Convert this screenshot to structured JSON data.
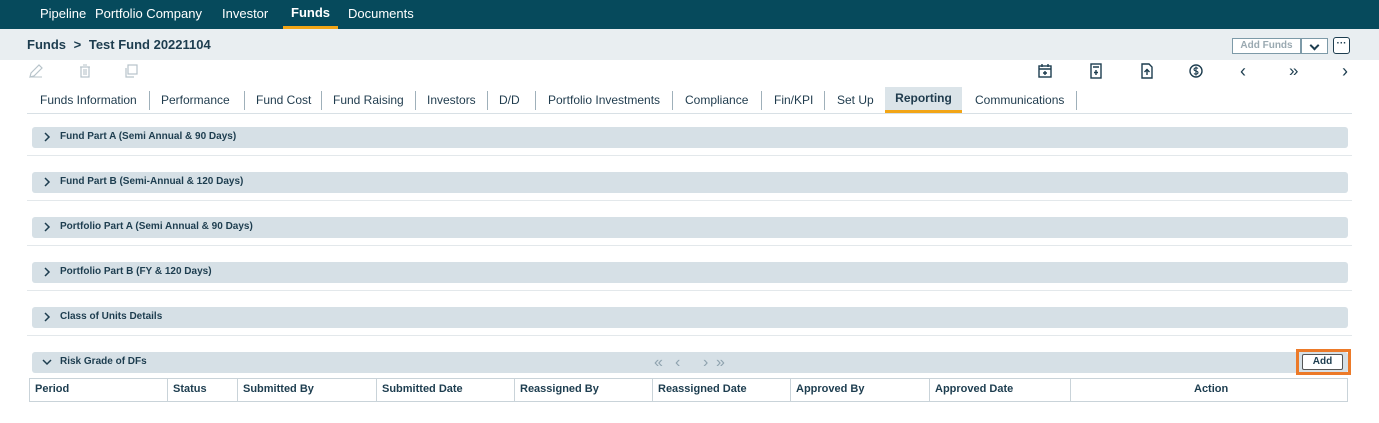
{
  "topnav": {
    "items": [
      "Pipeline",
      "Portfolio Company",
      "Investor",
      "Funds",
      "Documents"
    ],
    "active": "Funds"
  },
  "breadcrumb": {
    "root": "Funds",
    "separator": ">",
    "current": "Test Fund 20221104",
    "add_funds_label": "Add Funds",
    "more_label": "···"
  },
  "toolbar": {
    "left_icons": [
      "edit-icon",
      "delete-icon",
      "copy-icon"
    ],
    "right_icons": [
      "calendar-icon",
      "calculator-icon",
      "export-icon",
      "currency-icon",
      "prev-icon",
      "last-icon",
      "next-icon"
    ],
    "prev_glyph": "‹",
    "last_glyph": "»",
    "next_glyph": "›"
  },
  "tabs": {
    "items": [
      "Funds Information",
      "Performance",
      "Fund Cost",
      "Fund Raising",
      "Investors",
      "D/D",
      "Portfolio Investments",
      "Compliance",
      "Fin/KPI",
      "Set Up",
      "Reporting",
      "Communications"
    ],
    "active": "Reporting"
  },
  "sections": [
    {
      "label": "Fund Part A (Semi Annual & 90 Days)",
      "expanded": false
    },
    {
      "label": "Fund Part B (Semi-Annual & 120 Days)",
      "expanded": false
    },
    {
      "label": "Portfolio Part A (Semi Annual & 90 Days)",
      "expanded": false
    },
    {
      "label": "Portfolio Part B (FY & 120 Days)",
      "expanded": false
    },
    {
      "label": "Class of Units Details",
      "expanded": false
    },
    {
      "label": "Risk Grade of DFs",
      "expanded": true
    }
  ],
  "risk_grade": {
    "pager": {
      "first": "«",
      "prev": "‹",
      "next": "›",
      "last": "»"
    },
    "add_label": "Add",
    "columns": [
      "Period",
      "Status",
      "Submitted By",
      "Submitted Date",
      "Reassigned By",
      "Reassigned Date",
      "Approved By",
      "Approved Date",
      "Action"
    ]
  },
  "colors": {
    "nav_bg": "#064a5c",
    "accent": "#f2a516",
    "section_bar": "#d6e0e6",
    "highlight": "#ec7a29"
  }
}
